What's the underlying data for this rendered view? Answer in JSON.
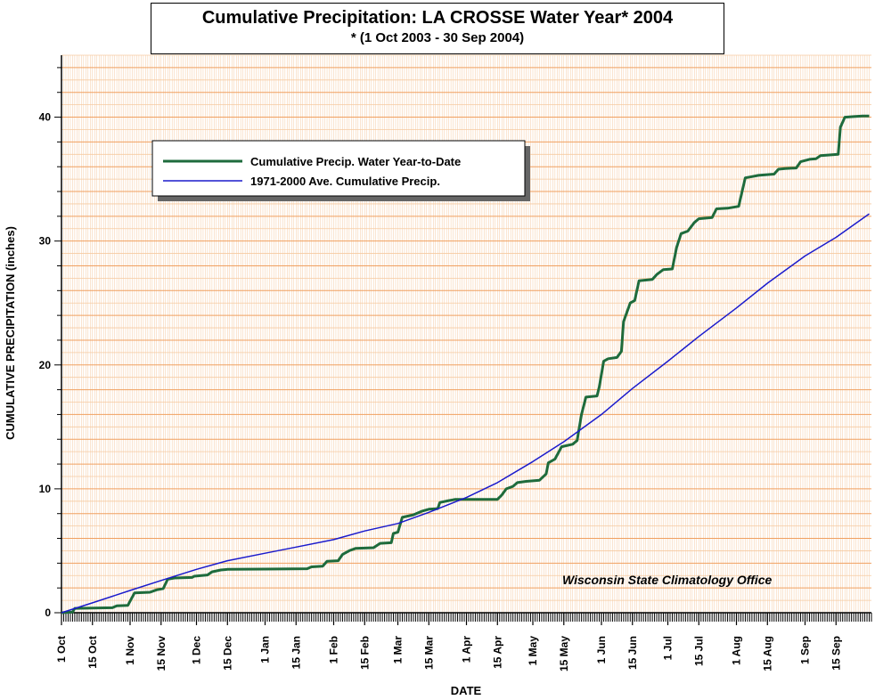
{
  "title": "Cumulative Precipitation: LA CROSSE Water Year* 2004",
  "subtitle": "* (1 Oct 2003 - 30 Sep 2004)",
  "credit": "Wisconsin State Climatology Office",
  "colors": {
    "observed": "#1e6b3c",
    "average": "#1a1acc",
    "grid_major": "#f0a060",
    "grid_minor": "#f6caa0",
    "background": "#ffffff"
  },
  "chart_data": {
    "type": "line",
    "title": "Cumulative Precipitation: LA CROSSE Water Year* 2004",
    "subtitle": "* (1 Oct 2003 - 30 Sep 2004)",
    "xlabel": "DATE",
    "ylabel": "CUMULATIVE PRECIPITATION (inches)",
    "xlim": [
      "2003-10-01",
      "2004-09-30"
    ],
    "ylim": [
      0,
      45
    ],
    "yticks": [
      0,
      10,
      20,
      30,
      40
    ],
    "xtick_labels": [
      "1 Oct",
      "15 Oct",
      "1 Nov",
      "15 Nov",
      "1 Dec",
      "15 Dec",
      "1 Jan",
      "15 Jan",
      "1 Feb",
      "15 Feb",
      "1 Mar",
      "15 Mar",
      "1 Apr",
      "15 Apr",
      "1 May",
      "15 May",
      "1 Jun",
      "15 Jun",
      "1 Jul",
      "15 Jul",
      "1 Aug",
      "15 Aug",
      "1 Sep",
      "15 Sep"
    ],
    "xtick_dates": [
      "2003-10-01",
      "2003-10-15",
      "2003-11-01",
      "2003-11-15",
      "2003-12-01",
      "2003-12-15",
      "2004-01-01",
      "2004-01-15",
      "2004-02-01",
      "2004-02-15",
      "2004-03-01",
      "2004-03-15",
      "2004-04-01",
      "2004-04-15",
      "2004-05-01",
      "2004-05-15",
      "2004-06-01",
      "2004-06-15",
      "2004-07-01",
      "2004-07-15",
      "2004-08-01",
      "2004-08-15",
      "2004-09-01",
      "2004-09-15"
    ],
    "grid": true,
    "legend_position": "top-left",
    "series": [
      {
        "name": "Cumulative Precip.  Water Year-to-Date",
        "color": "#1e6b3c",
        "points": [
          [
            "2003-10-01",
            0.0
          ],
          [
            "2003-10-06",
            0.05
          ],
          [
            "2003-10-07",
            0.35
          ],
          [
            "2003-10-24",
            0.4
          ],
          [
            "2003-10-26",
            0.55
          ],
          [
            "2003-10-31",
            0.6
          ],
          [
            "2003-11-03",
            1.6
          ],
          [
            "2003-11-10",
            1.65
          ],
          [
            "2003-11-13",
            1.85
          ],
          [
            "2003-11-16",
            1.95
          ],
          [
            "2003-11-18",
            2.7
          ],
          [
            "2003-11-21",
            2.8
          ],
          [
            "2003-11-29",
            2.85
          ],
          [
            "2003-11-30",
            2.95
          ],
          [
            "2003-12-06",
            3.05
          ],
          [
            "2003-12-08",
            3.3
          ],
          [
            "2003-12-12",
            3.45
          ],
          [
            "2003-12-15",
            3.5
          ],
          [
            "2004-01-01",
            3.52
          ],
          [
            "2004-01-20",
            3.55
          ],
          [
            "2004-01-22",
            3.7
          ],
          [
            "2004-01-27",
            3.75
          ],
          [
            "2004-01-29",
            4.15
          ],
          [
            "2004-02-03",
            4.2
          ],
          [
            "2004-02-05",
            4.7
          ],
          [
            "2004-02-08",
            5.0
          ],
          [
            "2004-02-11",
            5.2
          ],
          [
            "2004-02-19",
            5.25
          ],
          [
            "2004-02-22",
            5.6
          ],
          [
            "2004-02-27",
            5.65
          ],
          [
            "2004-02-28",
            6.4
          ],
          [
            "2004-03-01",
            6.5
          ],
          [
            "2004-03-03",
            7.7
          ],
          [
            "2004-03-08",
            7.9
          ],
          [
            "2004-03-12",
            8.2
          ],
          [
            "2004-03-15",
            8.35
          ],
          [
            "2004-03-19",
            8.4
          ],
          [
            "2004-03-20",
            8.9
          ],
          [
            "2004-03-24",
            9.05
          ],
          [
            "2004-03-27",
            9.15
          ],
          [
            "2004-04-15",
            9.15
          ],
          [
            "2004-04-17",
            9.5
          ],
          [
            "2004-04-19",
            10.0
          ],
          [
            "2004-04-22",
            10.2
          ],
          [
            "2004-04-24",
            10.5
          ],
          [
            "2004-04-28",
            10.6
          ],
          [
            "2004-05-04",
            10.7
          ],
          [
            "2004-05-07",
            11.2
          ],
          [
            "2004-05-08",
            12.1
          ],
          [
            "2004-05-11",
            12.4
          ],
          [
            "2004-05-14",
            13.4
          ],
          [
            "2004-05-19",
            13.6
          ],
          [
            "2004-05-21",
            13.9
          ],
          [
            "2004-05-23",
            16.0
          ],
          [
            "2004-05-25",
            17.4
          ],
          [
            "2004-05-30",
            17.5
          ],
          [
            "2004-05-31",
            18.2
          ],
          [
            "2004-06-02",
            20.3
          ],
          [
            "2004-06-04",
            20.5
          ],
          [
            "2004-06-08",
            20.6
          ],
          [
            "2004-06-10",
            21.1
          ],
          [
            "2004-06-11",
            23.5
          ],
          [
            "2004-06-14",
            25.0
          ],
          [
            "2004-06-16",
            25.2
          ],
          [
            "2004-06-18",
            26.8
          ],
          [
            "2004-06-24",
            26.9
          ],
          [
            "2004-06-26",
            27.3
          ],
          [
            "2004-06-29",
            27.7
          ],
          [
            "2004-07-03",
            27.75
          ],
          [
            "2004-07-05",
            29.5
          ],
          [
            "2004-07-07",
            30.6
          ],
          [
            "2004-07-10",
            30.8
          ],
          [
            "2004-07-13",
            31.5
          ],
          [
            "2004-07-15",
            31.8
          ],
          [
            "2004-07-21",
            31.9
          ],
          [
            "2004-07-23",
            32.6
          ],
          [
            "2004-07-28",
            32.65
          ],
          [
            "2004-08-02",
            32.8
          ],
          [
            "2004-08-05",
            35.1
          ],
          [
            "2004-08-08",
            35.2
          ],
          [
            "2004-08-11",
            35.3
          ],
          [
            "2004-08-18",
            35.4
          ],
          [
            "2004-08-20",
            35.8
          ],
          [
            "2004-08-23",
            35.85
          ],
          [
            "2004-08-28",
            35.9
          ],
          [
            "2004-08-30",
            36.4
          ],
          [
            "2004-09-03",
            36.6
          ],
          [
            "2004-09-06",
            36.65
          ],
          [
            "2004-09-08",
            36.9
          ],
          [
            "2004-09-12",
            36.95
          ],
          [
            "2004-09-16",
            37.0
          ],
          [
            "2004-09-17",
            39.2
          ],
          [
            "2004-09-19",
            40.0
          ],
          [
            "2004-09-23",
            40.05
          ],
          [
            "2004-09-27",
            40.1
          ],
          [
            "2004-09-30",
            40.1
          ]
        ]
      },
      {
        "name": "1971-2000 Ave. Cumulative Precip.",
        "color": "#1a1acc",
        "points": [
          [
            "2003-10-01",
            0.0
          ],
          [
            "2003-10-15",
            0.8
          ],
          [
            "2003-11-01",
            1.8
          ],
          [
            "2003-11-15",
            2.6
          ],
          [
            "2003-12-01",
            3.5
          ],
          [
            "2003-12-15",
            4.2
          ],
          [
            "2004-01-01",
            4.8
          ],
          [
            "2004-01-15",
            5.3
          ],
          [
            "2004-02-01",
            5.9
          ],
          [
            "2004-02-15",
            6.6
          ],
          [
            "2004-03-01",
            7.2
          ],
          [
            "2004-03-15",
            8.1
          ],
          [
            "2004-04-01",
            9.3
          ],
          [
            "2004-04-15",
            10.5
          ],
          [
            "2004-05-01",
            12.2
          ],
          [
            "2004-05-15",
            13.8
          ],
          [
            "2004-06-01",
            16.0
          ],
          [
            "2004-06-15",
            18.1
          ],
          [
            "2004-07-01",
            20.3
          ],
          [
            "2004-07-15",
            22.3
          ],
          [
            "2004-08-01",
            24.6
          ],
          [
            "2004-08-15",
            26.6
          ],
          [
            "2004-09-01",
            28.8
          ],
          [
            "2004-09-15",
            30.3
          ],
          [
            "2004-09-30",
            32.2
          ]
        ]
      }
    ]
  }
}
